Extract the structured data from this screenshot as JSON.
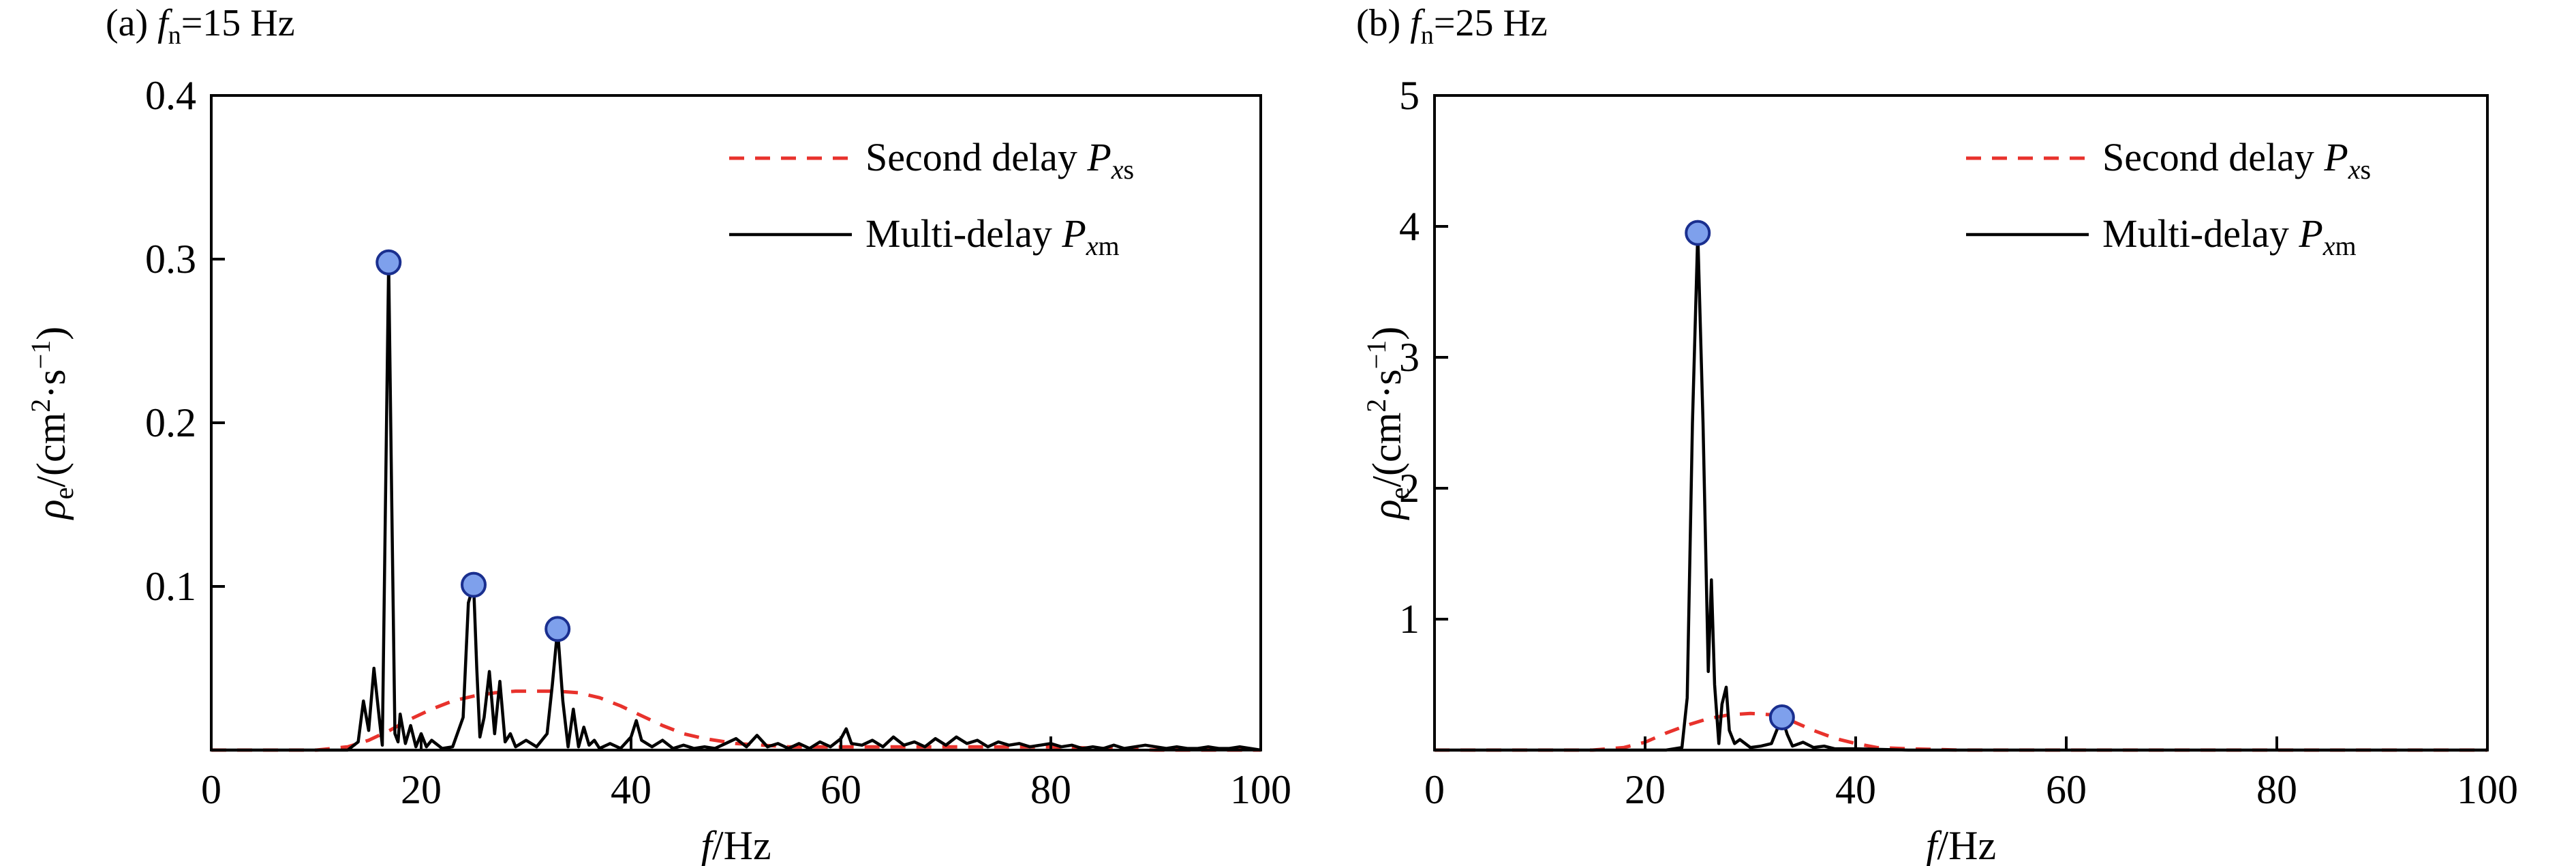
{
  "chart_data": [
    {
      "type": "line",
      "panel_label": {
        "prefix": "(a) ",
        "sym": "f",
        "sub": "n",
        "value": "=15 Hz"
      },
      "xlabel": {
        "sym": "f",
        "rest": "/Hz"
      },
      "ylabel": {
        "sym": "ρ",
        "sub": "e",
        "rest1": "/(cm",
        "sup1": "2",
        "rest2": "·s",
        "sup2": "−1",
        "rest3": ")"
      },
      "xlim": [
        0,
        100
      ],
      "ylim": [
        0,
        0.4
      ],
      "xticks": [
        0,
        20,
        40,
        60,
        80,
        100
      ],
      "xtick_labels": [
        "0",
        "20",
        "40",
        "60",
        "80",
        "100"
      ],
      "yticks": [
        0.1,
        0.2,
        0.3,
        0.4
      ],
      "ytick_labels": [
        "0.1",
        "0.2",
        "0.3",
        "0.4"
      ],
      "grid": false,
      "legend_position": "top-right",
      "series": [
        {
          "name": {
            "text": "Second delay ",
            "sym": "P",
            "sub_it": "x",
            "sub": "s"
          },
          "style": "dashed",
          "color": "#e8322c",
          "x": [
            0,
            10,
            13,
            15,
            17,
            19,
            21,
            23,
            25,
            27,
            29,
            31,
            33,
            35,
            37,
            39,
            41,
            43,
            45,
            47,
            50,
            55,
            60,
            70,
            80,
            90,
            100
          ],
          "y": [
            0,
            0,
            0.002,
            0.006,
            0.012,
            0.019,
            0.025,
            0.03,
            0.033,
            0.035,
            0.036,
            0.036,
            0.036,
            0.035,
            0.032,
            0.027,
            0.021,
            0.015,
            0.01,
            0.007,
            0.004,
            0.002,
            0.002,
            0.002,
            0.002,
            0,
            0
          ]
        },
        {
          "name": {
            "text": "Multi-delay ",
            "sym": "P",
            "sub_it": "x",
            "sub": "m"
          },
          "style": "solid",
          "color": "#000000",
          "x": [
            0,
            13,
            14,
            14.5,
            15,
            15.5,
            16,
            16.3,
            16.6,
            16.9,
            17.2,
            17.5,
            17.8,
            18,
            18.5,
            19,
            19.5,
            20,
            20.5,
            21,
            22,
            23,
            24,
            24.5,
            25,
            25.3,
            25.6,
            26,
            26.5,
            27,
            27.5,
            28,
            28.5,
            29,
            30,
            31,
            32,
            32.5,
            33,
            33.5,
            34,
            34.5,
            35,
            35.5,
            36,
            36.5,
            37,
            38,
            39,
            40,
            40.5,
            41,
            42,
            43,
            44,
            45,
            46,
            47,
            48,
            49,
            50,
            51,
            52,
            53,
            54,
            55,
            56,
            57,
            58,
            59,
            60,
            60.5,
            61,
            62,
            63,
            64,
            65,
            66,
            67,
            68,
            69,
            70,
            71,
            72,
            73,
            74,
            75,
            76,
            77,
            78,
            79,
            80,
            81,
            82,
            83,
            84,
            85,
            86,
            87,
            88,
            89,
            90,
            91,
            92,
            93,
            94,
            95,
            96,
            97,
            98,
            99,
            100
          ],
          "y": [
            0,
            0,
            0.005,
            0.03,
            0.012,
            0.05,
            0.02,
            0.003,
            0.15,
            0.298,
            0.15,
            0.01,
            0.005,
            0.022,
            0.004,
            0.015,
            0.002,
            0.01,
            0.002,
            0.006,
            0.001,
            0.002,
            0.02,
            0.09,
            0.101,
            0.05,
            0.008,
            0.02,
            0.048,
            0.01,
            0.042,
            0.005,
            0.01,
            0.002,
            0.006,
            0.002,
            0.01,
            0.04,
            0.074,
            0.03,
            0.002,
            0.025,
            0.002,
            0.014,
            0.003,
            0.006,
            0.001,
            0.004,
            0.001,
            0.008,
            0.018,
            0.006,
            0.002,
            0.006,
            0.001,
            0.003,
            0.001,
            0.002,
            0.001,
            0.004,
            0.007,
            0.002,
            0.009,
            0.002,
            0.004,
            0.001,
            0.004,
            0.001,
            0.005,
            0.002,
            0.007,
            0.013,
            0.004,
            0.003,
            0.006,
            0.002,
            0.008,
            0.003,
            0.005,
            0.002,
            0.007,
            0.003,
            0.008,
            0.004,
            0.006,
            0.002,
            0.005,
            0.003,
            0.004,
            0.002,
            0.003,
            0.004,
            0.002,
            0.003,
            0.001,
            0.002,
            0.001,
            0.003,
            0.001,
            0.002,
            0.003,
            0.002,
            0.001,
            0.002,
            0.001,
            0.001,
            0.002,
            0.001,
            0.001,
            0.002,
            0.001,
            0
          ]
        }
      ],
      "markers": {
        "color": "#7ea0ec",
        "stroke": "#1a2f8f",
        "points": [
          {
            "x": 16.9,
            "y": 0.298
          },
          {
            "x": 25,
            "y": 0.101
          },
          {
            "x": 33,
            "y": 0.074
          }
        ]
      }
    },
    {
      "type": "line",
      "panel_label": {
        "prefix": "(b) ",
        "sym": "f",
        "sub": "n",
        "value": "=25 Hz"
      },
      "xlabel": {
        "sym": "f",
        "rest": "/Hz"
      },
      "ylabel": {
        "sym": "ρ",
        "sub": "e",
        "rest1": "/(cm",
        "sup1": "2",
        "rest2": "·s",
        "sup2": "−1",
        "rest3": ")"
      },
      "xlim": [
        0,
        100
      ],
      "ylim": [
        0,
        5
      ],
      "xticks": [
        0,
        20,
        40,
        60,
        80,
        100
      ],
      "xtick_labels": [
        "0",
        "20",
        "40",
        "60",
        "80",
        "100"
      ],
      "yticks": [
        1,
        2,
        3,
        4,
        5
      ],
      "ytick_labels": [
        "1",
        "2",
        "3",
        "4",
        "5"
      ],
      "grid": false,
      "legend_position": "top-right",
      "series": [
        {
          "name": {
            "text": "Second delay ",
            "sym": "P",
            "sub_it": "x",
            "sub": "s"
          },
          "style": "dashed",
          "color": "#e8322c",
          "x": [
            0,
            15,
            18,
            20,
            22,
            24,
            26,
            28,
            30,
            32,
            34,
            36,
            38,
            40,
            42,
            45,
            50,
            60,
            70,
            80,
            90,
            100
          ],
          "y": [
            0,
            0,
            0.02,
            0.06,
            0.13,
            0.19,
            0.24,
            0.27,
            0.28,
            0.27,
            0.22,
            0.15,
            0.09,
            0.05,
            0.02,
            0.01,
            0,
            0,
            0,
            0,
            0,
            0
          ]
        },
        {
          "name": {
            "text": "Multi-delay ",
            "sym": "P",
            "sub_it": "x",
            "sub": "m"
          },
          "style": "solid",
          "color": "#000000",
          "x": [
            0,
            22,
            23.5,
            24,
            24.5,
            25,
            25.5,
            26,
            26.3,
            26.6,
            27,
            27.3,
            27.7,
            28,
            28.5,
            29,
            30,
            31,
            32,
            32.5,
            33,
            33.5,
            34,
            35,
            36,
            37,
            38,
            40,
            45,
            50,
            60,
            70,
            80,
            100
          ],
          "y": [
            0,
            0,
            0.02,
            0.4,
            2.5,
            3.95,
            2.5,
            0.6,
            1.3,
            0.5,
            0.05,
            0.35,
            0.48,
            0.15,
            0.05,
            0.08,
            0.02,
            0.03,
            0.05,
            0.15,
            0.25,
            0.12,
            0.03,
            0.06,
            0.02,
            0.03,
            0.01,
            0.01,
            0,
            0,
            0,
            0,
            0,
            0
          ]
        }
      ],
      "markers": {
        "color": "#7ea0ec",
        "stroke": "#1a2f8f",
        "points": [
          {
            "x": 25,
            "y": 3.95
          },
          {
            "x": 33,
            "y": 0.25
          }
        ]
      }
    }
  ]
}
